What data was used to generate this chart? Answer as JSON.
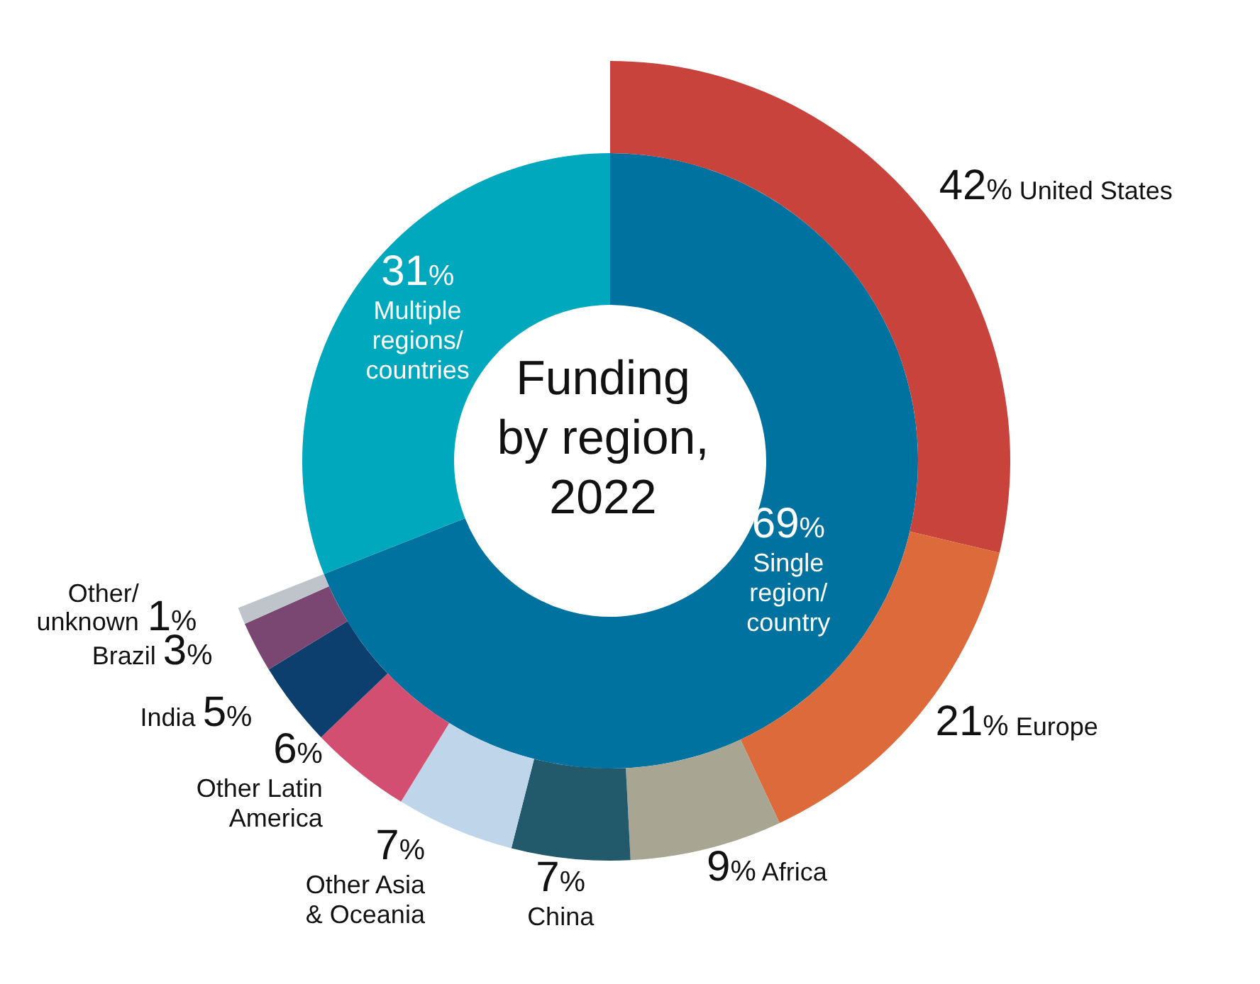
{
  "chart_data": [
    {
      "type": "donut",
      "title": "Funding by region, 2022",
      "categories": [
        "Single region/ country",
        "Multiple regions/ countries"
      ],
      "values": [
        69,
        31
      ],
      "colors": [
        "#0072a0",
        "#00a8bd"
      ],
      "value_labels": [
        "69%",
        "31%"
      ]
    },
    {
      "type": "donut",
      "categories": [
        "United States",
        "Europe",
        "Africa",
        "China",
        "Other Asia & Oceania",
        "Other Latin America",
        "India",
        "Brazil",
        "Other/ unknown"
      ],
      "values": [
        42,
        21,
        9,
        7,
        7,
        6,
        5,
        3,
        1
      ],
      "colors": [
        "#c8433c",
        "#dc6a3a",
        "#a8a592",
        "#22596b",
        "#bfd5ea",
        "#d24f72",
        "#0d3f6e",
        "#7a4772",
        "#bfc4cb"
      ],
      "value_labels": [
        "42%",
        "21%",
        "9%",
        "7%",
        "7%",
        "6%",
        "5%",
        "3%",
        "1%"
      ]
    }
  ]
}
